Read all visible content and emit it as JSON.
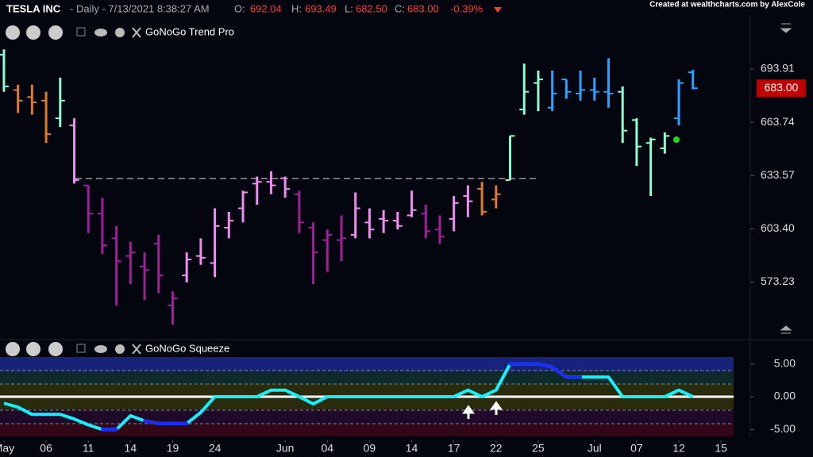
{
  "header": {
    "symbol": "TESLA INC",
    "interval": "- Daily - 7/13/2021 8:38:27 AM",
    "open_label": "O:",
    "open": "692.04",
    "high_label": "H:",
    "high": "693.49",
    "low_label": "L:",
    "low": "682.50",
    "close_label": "C:",
    "close": "683.00",
    "change": "-0.39%",
    "credit": "Created at wealthcharts.com by AlexCole"
  },
  "chart_data": [
    {
      "type": "ohlc",
      "title": "GoNoGo Trend Pro",
      "xlim": [
        -0.28,
        53.08
      ],
      "ylim": [
        542,
        724
      ],
      "yticks": [
        573.23,
        {
          "value": 603.4,
          "label": "603.40"
        },
        633.57,
        663.74,
        693.91
      ],
      "open": [
        702,
        682,
        678,
        676,
        666,
        662,
        628,
        612,
        598,
        588,
        582,
        595,
        560,
        577,
        588,
        584,
        604,
        615,
        629,
        630,
        632,
        623,
        604,
        597,
        597,
        600,
        607,
        609,
        608,
        611,
        612,
        603,
        609,
        622,
        626,
        620,
        631,
        671,
        686,
        672,
        688,
        680,
        682,
        681,
        681,
        665,
        652,
        649,
        666,
        692.04
      ],
      "high": [
        705,
        685,
        685,
        681,
        689,
        666,
        628,
        621,
        605,
        596,
        590,
        600,
        568,
        590,
        598,
        615,
        613,
        625,
        633,
        636,
        633,
        625,
        607,
        603,
        611,
        624,
        615,
        614,
        613,
        625,
        617,
        611,
        622,
        628,
        630,
        628,
        656,
        697,
        693,
        693,
        688,
        693,
        689,
        700,
        684,
        666,
        655,
        658,
        688,
        693.49
      ],
      "low": [
        681,
        669,
        668,
        652,
        661,
        629,
        601,
        589,
        560,
        572,
        563,
        567,
        549,
        573,
        583,
        576,
        598,
        607,
        617,
        623,
        621,
        601,
        572,
        579,
        585,
        598,
        598,
        601,
        603,
        610,
        598,
        595,
        602,
        610,
        611,
        615,
        631,
        668,
        670,
        670,
        677,
        676,
        676,
        672,
        652,
        639,
        622,
        646,
        662,
        682.5
      ],
      "close": [
        684,
        676,
        675,
        657,
        676,
        631,
        612,
        594,
        585,
        590,
        580,
        577,
        564,
        586,
        587,
        605,
        608,
        624,
        630,
        628,
        626,
        607,
        590,
        600,
        598,
        615,
        603,
        608,
        605,
        614,
        602,
        599,
        618,
        619,
        613,
        623,
        656,
        681,
        688,
        680,
        681,
        682,
        681,
        680,
        659,
        650,
        654,
        656,
        686,
        683
      ],
      "colors": [
        "#8dffd0",
        "#e07a2a",
        "#e07a2a",
        "#e07a2a",
        "#8dffd0",
        "#f08cf0",
        "#a0209a",
        "#a0209a",
        "#a0209a",
        "#a0209a",
        "#a0209a",
        "#a0209a",
        "#a0209a",
        "#f08cf0",
        "#f08cf0",
        "#f08cf0",
        "#f08cf0",
        "#f08cf0",
        "#f08cf0",
        "#f08cf0",
        "#f08cf0",
        "#a0209a",
        "#a0209a",
        "#a0209a",
        "#a0209a",
        "#f08cf0",
        "#f08cf0",
        "#f08cf0",
        "#f08cf0",
        "#f08cf0",
        "#a0209a",
        "#a0209a",
        "#f08cf0",
        "#f08cf0",
        "#e07a2a",
        "#e07a2a",
        "#8dffd0",
        "#8dffd0",
        "#8dffd0",
        "#29a3ff",
        "#29a3ff",
        "#29a3ff",
        "#29a3ff",
        "#29a3ff",
        "#8dffd0",
        "#8dffd0",
        "#8dffd0",
        "#8dffd0",
        "#29a3ff",
        "#29a3ff"
      ],
      "last_close_label": "683.00"
    },
    {
      "type": "line",
      "title": "GoNoGo Squeeze",
      "xlim": [
        -0.28,
        53.08
      ],
      "ylim": [
        -6.3,
        6.3
      ],
      "yticks": [
        {
          "value": -5,
          "label": "-5.00"
        },
        {
          "value": 0,
          "label": "0.00"
        },
        {
          "value": 5,
          "label": "5.00"
        }
      ],
      "xticks": [
        {
          "value": 0,
          "label": "May"
        },
        {
          "value": 3,
          "label": "06"
        },
        {
          "value": 6,
          "label": "11"
        },
        {
          "value": 9,
          "label": "14"
        },
        {
          "value": 12,
          "label": "19"
        },
        {
          "value": 15,
          "label": "24"
        },
        {
          "value": 20,
          "label": "Jun"
        },
        {
          "value": 23,
          "label": "04"
        },
        {
          "value": 26,
          "label": "09"
        },
        {
          "value": 29,
          "label": "14"
        },
        {
          "value": 32,
          "label": "17"
        },
        {
          "value": 35,
          "label": "22"
        },
        {
          "value": 38,
          "label": "25"
        },
        {
          "value": 42,
          "label": "Jul"
        },
        {
          "value": 45,
          "label": "07"
        },
        {
          "value": 48,
          "label": "12"
        },
        {
          "value": 51,
          "label": "15"
        }
      ],
      "values": [
        -1,
        -1.6,
        -2.7,
        -2.7,
        -2.7,
        -3.4,
        -4.3,
        -5,
        -5,
        -2.9,
        -3.7,
        -4.1,
        -4.1,
        -4.1,
        -2.4,
        0,
        0,
        0,
        0,
        1,
        1,
        0,
        -1.1,
        0,
        0,
        0,
        0,
        0,
        0,
        0,
        0,
        0,
        0,
        1,
        0,
        1,
        5,
        5,
        5,
        4.5,
        3,
        3,
        3,
        3,
        0,
        0,
        0,
        0,
        1,
        0
      ],
      "color": "#14f0ff",
      "point_colors": [
        "#14f0ff",
        "#14f0ff",
        "#14f0ff",
        "#14f0ff",
        "#14f0ff",
        "#14f0ff",
        "#14f0ff",
        "#1a2cff",
        "#1a2cff",
        "#14f0ff",
        "#1a2cff",
        "#1a2cff",
        "#1a2cff",
        "#1a2cff",
        "#14f0ff",
        "#14f0ff",
        "#14f0ff",
        "#14f0ff",
        "#14f0ff",
        "#14f0ff",
        "#14f0ff",
        "#14f0ff",
        "#14f0ff",
        "#14f0ff",
        "#14f0ff",
        "#14f0ff",
        "#14f0ff",
        "#14f0ff",
        "#14f0ff",
        "#14f0ff",
        "#14f0ff",
        "#14f0ff",
        "#14f0ff",
        "#14f0ff",
        "#14f0ff",
        "#14f0ff",
        "#1a2cff",
        "#1a2cff",
        "#1a2cff",
        "#1a2cff",
        "#1a2cff",
        "#1a2cff",
        "#14f0ff",
        "#14f0ff",
        "#14f0ff",
        "#14f0ff",
        "#14f0ff",
        "#14f0ff",
        "#14f0ff",
        "#14f0ff"
      ]
    }
  ]
}
